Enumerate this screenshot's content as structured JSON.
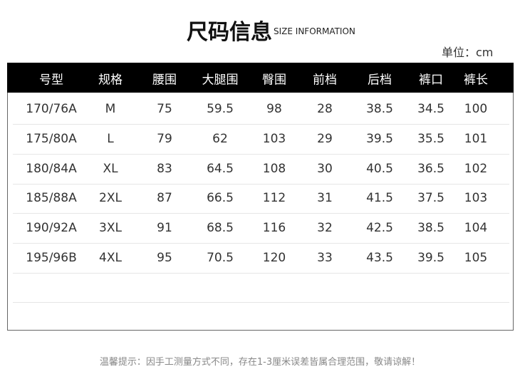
{
  "header": {
    "title": "尺码信息",
    "subtitle": "SIZE INFORMATION",
    "unit": "单位：cm"
  },
  "table": {
    "columns": [
      "号型",
      "规格",
      "腰围",
      "大腿围",
      "臀围",
      "前档",
      "后档",
      "裤口",
      "裤长"
    ],
    "rows": [
      [
        "170/76A",
        "M",
        "75",
        "59.5",
        "98",
        "28",
        "38.5",
        "34.5",
        "100"
      ],
      [
        "175/80A",
        "L",
        "79",
        "62",
        "103",
        "29",
        "39.5",
        "35.5",
        "101"
      ],
      [
        "180/84A",
        "XL",
        "83",
        "64.5",
        "108",
        "30",
        "40.5",
        "36.5",
        "102"
      ],
      [
        "185/88A",
        "2XL",
        "87",
        "66.5",
        "112",
        "31",
        "41.5",
        "37.5",
        "103"
      ],
      [
        "190/92A",
        "3XL",
        "91",
        "68.5",
        "116",
        "32",
        "42.5",
        "38.5",
        "104"
      ],
      [
        "195/96B",
        "4XL",
        "95",
        "70.5",
        "120",
        "33",
        "43.5",
        "39.5",
        "105"
      ]
    ]
  },
  "footer": {
    "note": "温馨提示：因手工测量方式不同，存在1-3厘米误差皆属合理范围，敬请谅解！"
  }
}
